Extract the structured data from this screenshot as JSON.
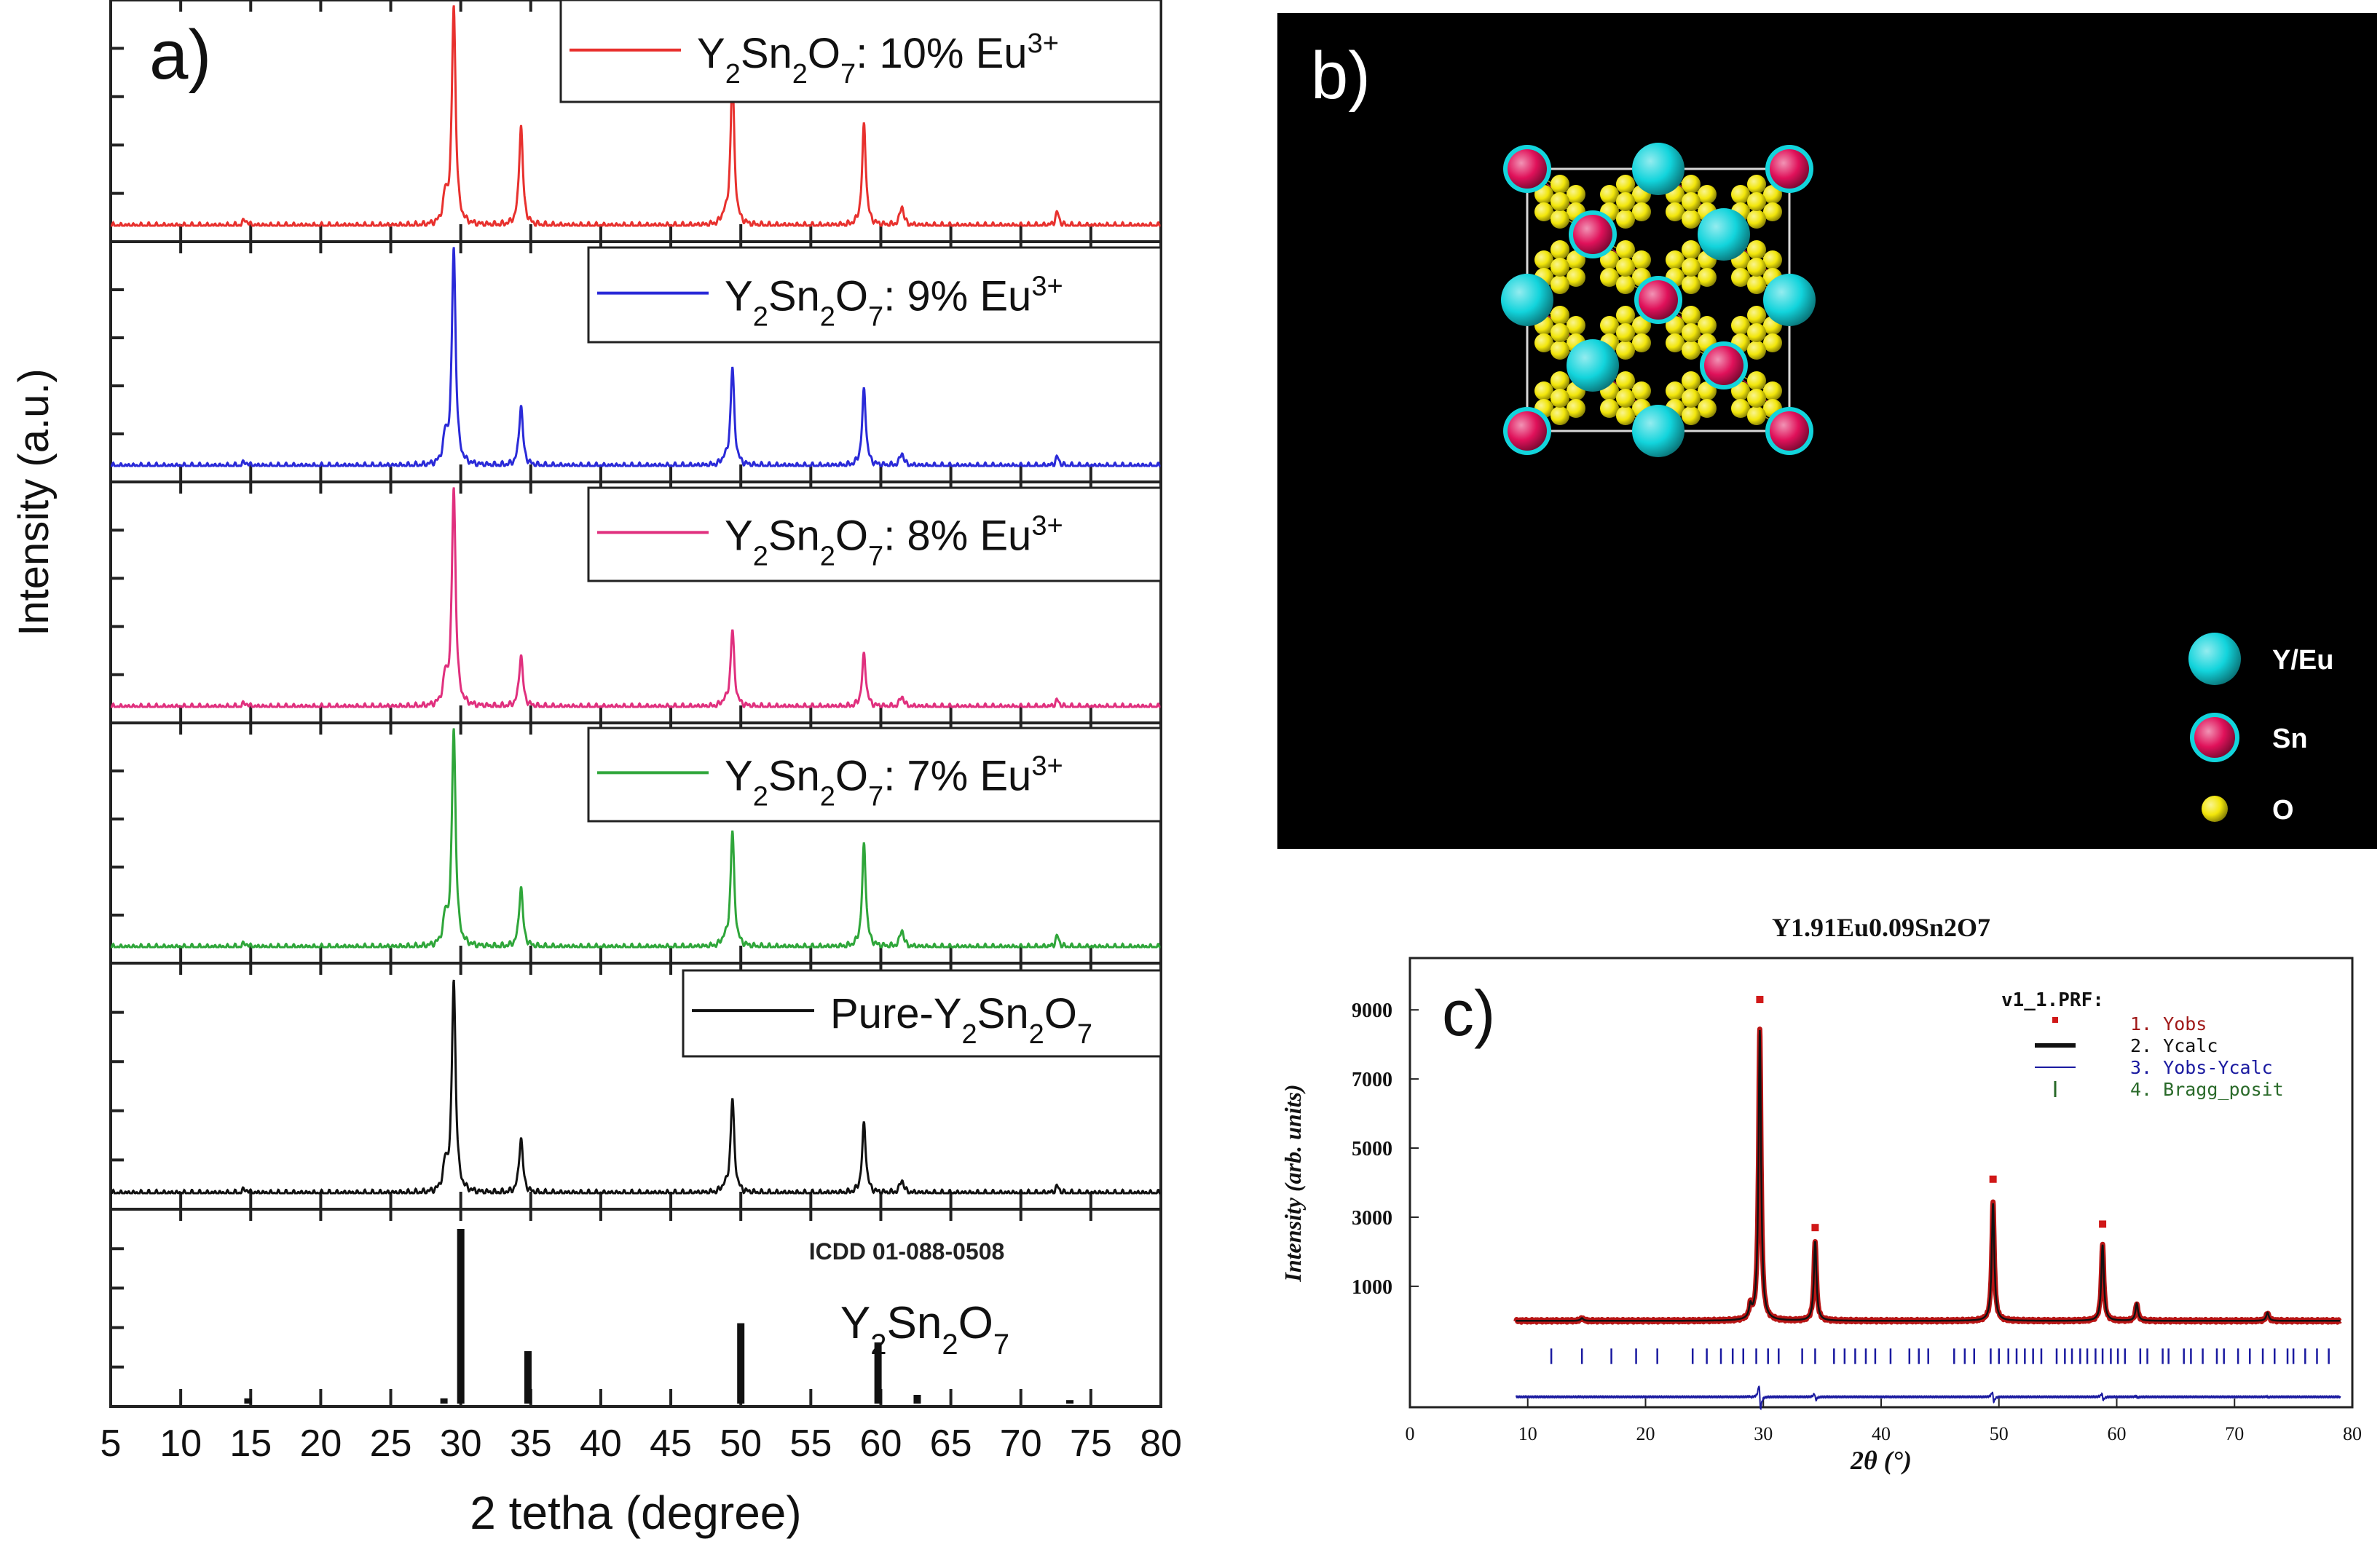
{
  "colors": {
    "red": "#e8312e",
    "blue": "#2a2ad8",
    "pink": "#e0307e",
    "green": "#2fa63a",
    "black": "#111111",
    "cyan": "#12d4dc",
    "magenta": "#e0115a",
    "yellow": "#f2e60a",
    "obs": "#b81515",
    "diff": "#1a1aa0",
    "bragg": "#2a6a2a"
  },
  "panel_a": {
    "label": "a)",
    "xlabel": "2 tetha (degree)",
    "ylabel": "Intensity (a.u.)",
    "xlim": [
      5,
      80
    ],
    "xticks": [
      "5",
      "10",
      "15",
      "20",
      "25",
      "30",
      "35",
      "40",
      "45",
      "50",
      "55",
      "60",
      "65",
      "70",
      "75",
      "80"
    ],
    "icdd_label": "ICDD 01-088-0508",
    "icdd_formula": {
      "base": "Y",
      "s1": "2",
      "m1": "Sn",
      "s2": "2",
      "m2": "O",
      "s3": "7",
      "tail": ""
    }
  },
  "panel_b": {
    "label": "b)",
    "legend": [
      {
        "label": "Y/Eu",
        "kind": "yeu"
      },
      {
        "label": "Sn",
        "kind": "sn"
      },
      {
        "label": "O",
        "kind": "o"
      }
    ]
  },
  "panel_c": {
    "label": "c)",
    "title": "Y1.91Eu0.09Sn2O7",
    "ylabel": "Intensity (arb. units)",
    "xlabel": "2θ (°)",
    "yticks": [
      "1000",
      "3000",
      "5000",
      "7000",
      "9000"
    ],
    "xticks": [
      "0",
      "10",
      "20",
      "30",
      "40",
      "50",
      "60",
      "70",
      "80"
    ],
    "legend_title": "v1_1.PRF:",
    "legend": [
      {
        "label": "1. Yobs",
        "kind": "obs"
      },
      {
        "label": "2. Ycalc",
        "kind": "calc"
      },
      {
        "label": "3. Yobs-Ycalc",
        "kind": "diff"
      },
      {
        "label": "4. Bragg_posit",
        "kind": "bragg"
      }
    ]
  },
  "chart_data": [
    {
      "id": "a",
      "type": "line",
      "title": "",
      "xlabel": "2 tetha (degree)",
      "ylabel": "Intensity (a.u.)",
      "xlim": [
        5,
        80
      ],
      "peaks_2theta": [
        14.6,
        29.5,
        34.3,
        49.4,
        58.8,
        61.5,
        72.6
      ],
      "series": [
        {
          "name": "Y2Sn2O7: 10% Eu3+",
          "formula": {
            "base": "Y",
            "s1": "2",
            "m1": "Sn",
            "s2": "2",
            "m2": "O",
            "s3": "7",
            "tail": ": 10% Eu"
          },
          "sup": "3+",
          "color": "#e8312e",
          "intensities": [
            0.03,
            1.0,
            0.46,
            0.68,
            0.46,
            0.09,
            0.06
          ]
        },
        {
          "name": "Y2Sn2O7: 9% Eu3+",
          "formula": {
            "base": "Y",
            "s1": "2",
            "m1": "Sn",
            "s2": "2",
            "m2": "O",
            "s3": "7",
            "tail": ": 9% Eu"
          },
          "sup": "3+",
          "color": "#2a2ad8",
          "intensities": [
            0.02,
            1.0,
            0.28,
            0.45,
            0.35,
            0.06,
            0.04
          ]
        },
        {
          "name": "Y2Sn2O7: 8% Eu3+",
          "formula": {
            "base": "Y",
            "s1": "2",
            "m1": "Sn",
            "s2": "2",
            "m2": "O",
            "s3": "7",
            "tail": ": 8% Eu"
          },
          "sup": "3+",
          "color": "#e0307e",
          "intensities": [
            0.02,
            1.0,
            0.24,
            0.35,
            0.24,
            0.05,
            0.03
          ]
        },
        {
          "name": "Y2Sn2O7: 7% Eu3+",
          "formula": {
            "base": "Y",
            "s1": "2",
            "m1": "Sn",
            "s2": "2",
            "m2": "O",
            "s3": "7",
            "tail": ": 7% Eu"
          },
          "sup": "3+",
          "color": "#2fa63a",
          "intensities": [
            0.02,
            1.0,
            0.28,
            0.53,
            0.47,
            0.08,
            0.05
          ]
        },
        {
          "name": "Pure-Y2Sn2O7",
          "formula": {
            "base": "Pure-Y",
            "s1": "2",
            "m1": "Sn",
            "s2": "2",
            "m2": "O",
            "s3": "7",
            "tail": ""
          },
          "sup": "",
          "color": "#111111",
          "intensities": [
            0.02,
            0.95,
            0.25,
            0.42,
            0.31,
            0.06,
            0.03
          ]
        }
      ],
      "reference": {
        "name": "ICDD 01-088-0508",
        "x": [
          14.8,
          28.8,
          30.0,
          34.8,
          50.0,
          59.8,
          62.6,
          73.5
        ],
        "values": [
          0.03,
          0.03,
          1.0,
          0.3,
          0.46,
          0.35,
          0.05,
          0.02
        ]
      }
    },
    {
      "id": "c",
      "type": "line",
      "title": "Y1.91Eu0.09Sn2O7",
      "xlabel": "2θ (°)",
      "ylabel": "Intensity (arb. units)",
      "xlim": [
        0,
        80
      ],
      "ylim": [
        -2500,
        10500
      ],
      "x_range_measured": [
        9,
        79
      ],
      "background": 0,
      "peaks": {
        "x": [
          14.6,
          28.9,
          29.7,
          34.4,
          49.5,
          58.8,
          61.7,
          72.8
        ],
        "values": [
          80,
          350,
          8400,
          2300,
          3400,
          2200,
          500,
          240
        ]
      },
      "obs_peak_markers": {
        "x": [
          29.7,
          34.4,
          49.5,
          58.8
        ],
        "values": [
          9300,
          2700,
          4100,
          2800
        ]
      },
      "bragg_positions": [
        12.0,
        14.6,
        17.1,
        19.2,
        21.0,
        24.0,
        25.2,
        26.4,
        27.4,
        28.3,
        29.4,
        30.4,
        31.3,
        33.3,
        34.4,
        36.0,
        36.9,
        37.8,
        38.7,
        39.5,
        40.8,
        42.4,
        43.2,
        44.0,
        46.2,
        47.1,
        47.9,
        49.3,
        50.0,
        50.8,
        51.5,
        52.2,
        52.9,
        53.6,
        54.9,
        55.6,
        56.2,
        56.9,
        57.5,
        58.2,
        58.8,
        59.5,
        60.1,
        60.7,
        62.0,
        62.6,
        63.9,
        64.4,
        65.7,
        66.3,
        67.3,
        68.5,
        69.1,
        70.3,
        71.3,
        72.4,
        73.4,
        74.5,
        75.0,
        76.0,
        77.0,
        78.0
      ]
    }
  ]
}
